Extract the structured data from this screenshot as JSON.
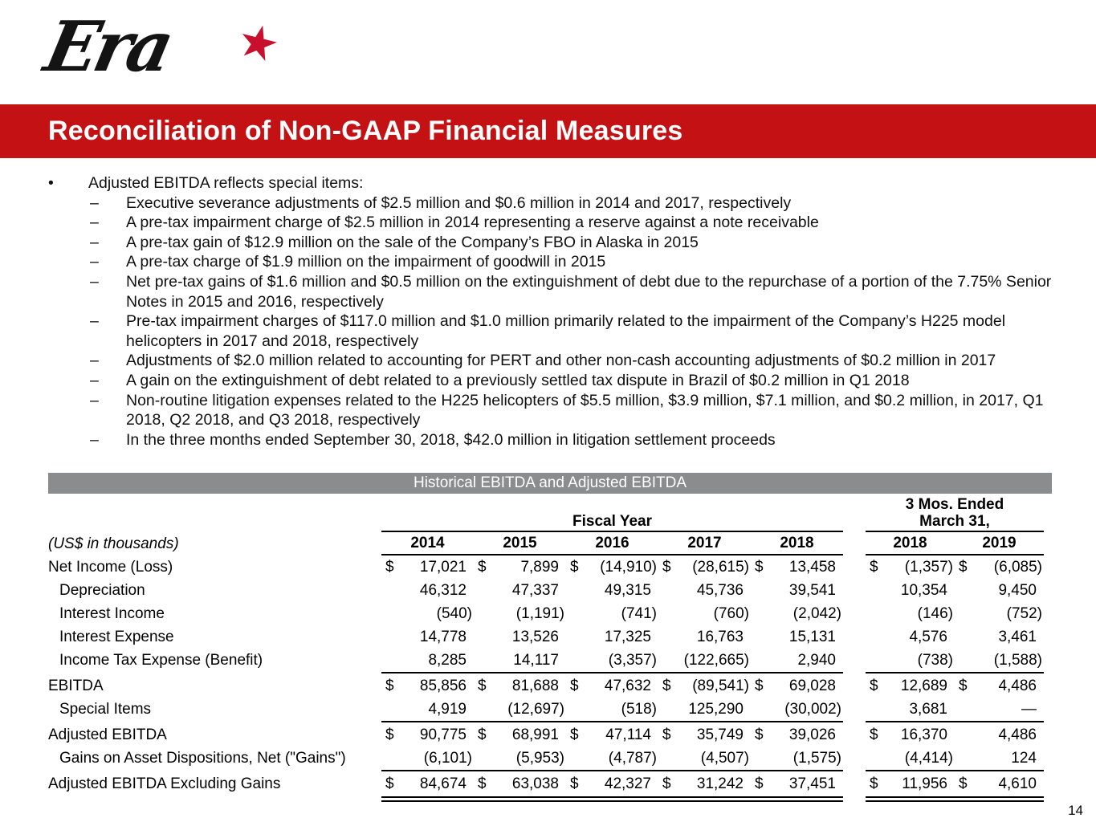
{
  "slide": {
    "logo_text": "Era",
    "logo_star": "★",
    "title": "Reconciliation of Non-GAAP Financial Measures",
    "page_number": "14"
  },
  "colors": {
    "band_red": "#C31114",
    "star_red": "#C8102E",
    "band_gray": "#8A8C8E"
  },
  "bullets": {
    "marker_lead": "•",
    "marker_sub": "–",
    "lead": "Adjusted EBITDA reflects special items:",
    "items": [
      "Executive severance adjustments of $2.5 million and $0.6 million in 2014 and 2017, respectively",
      "A pre-tax impairment charge of $2.5 million in 2014 representing a reserve against a note receivable",
      "A pre-tax gain of $12.9 million on the sale of the Company’s FBO in Alaska in 2015",
      "A pre-tax charge of $1.9 million on the impairment of goodwill in 2015",
      "Net pre-tax gains of $1.6 million and $0.5 million on the extinguishment of debt due to the repurchase of a portion of the 7.75% Senior Notes in 2015 and 2016, respectively",
      "Pre-tax impairment charges of $117.0 million and $1.0 million primarily related to the impairment of the Company’s H225 model helicopters in 2017 and 2018, respectively",
      "Adjustments of $2.0 million related to accounting for PERT and other non-cash accounting adjustments of $0.2 million in 2017",
      "A gain on the extinguishment of debt related to a previously settled tax dispute in Brazil of $0.2 million in Q1 2018",
      "Non-routine litigation expenses related to the H225 helicopters of $5.5 million, $3.9 million, $7.1 million, and $0.2 million, in 2017, Q1 2018, Q2 2018, and Q3 2018, respectively",
      "In the three months ended September 30, 2018, $42.0 million in litigation settlement proceeds"
    ]
  },
  "table": {
    "band_title": "Historical EBITDA and Adjusted EBITDA",
    "units_label": "(US$ in thousands)",
    "currency": "$",
    "group_headers": {
      "fiscal_year": "Fiscal Year",
      "three_months_line1": "3 Mos. Ended",
      "three_months_line2": "March 31,"
    },
    "years_fiscal": [
      "2014",
      "2015",
      "2016",
      "2017",
      "2018"
    ],
    "years_three_months": [
      "2018",
      "2019"
    ],
    "rows": [
      {
        "label": "Net Income (Loss)",
        "indent": false,
        "dollars": [
          1,
          1,
          1,
          1,
          1,
          1,
          1
        ],
        "values": [
          "17,021",
          "7,899",
          "(14,910)",
          "(28,615)",
          "13,458",
          "(1,357)",
          "(6,085)"
        ],
        "rule_below": "none"
      },
      {
        "label": "Depreciation",
        "indent": true,
        "dollars": [
          0,
          0,
          0,
          0,
          0,
          0,
          0
        ],
        "values": [
          "46,312",
          "47,337",
          "49,315",
          "45,736",
          "39,541",
          "10,354",
          "9,450"
        ],
        "rule_below": "none"
      },
      {
        "label": "Interest Income",
        "indent": true,
        "dollars": [
          0,
          0,
          0,
          0,
          0,
          0,
          0
        ],
        "values": [
          "(540)",
          "(1,191)",
          "(741)",
          "(760)",
          "(2,042)",
          "(146)",
          "(752)"
        ],
        "rule_below": "none"
      },
      {
        "label": "Interest Expense",
        "indent": true,
        "dollars": [
          0,
          0,
          0,
          0,
          0,
          0,
          0
        ],
        "values": [
          "14,778",
          "13,526",
          "17,325",
          "16,763",
          "15,131",
          "4,576",
          "3,461"
        ],
        "rule_below": "none"
      },
      {
        "label": "Income Tax Expense (Benefit)",
        "indent": true,
        "dollars": [
          0,
          0,
          0,
          0,
          0,
          0,
          0
        ],
        "values": [
          "8,285",
          "14,117",
          "(3,357)",
          "(122,665)",
          "2,940",
          "(738)",
          "(1,588)"
        ],
        "rule_below": "single"
      },
      {
        "label": "EBITDA",
        "indent": false,
        "dollars": [
          1,
          1,
          1,
          1,
          1,
          1,
          1
        ],
        "values": [
          "85,856",
          "81,688",
          "47,632",
          "(89,541)",
          "69,028",
          "12,689",
          "4,486"
        ],
        "rule_below": "none"
      },
      {
        "label": "Special Items",
        "indent": true,
        "dollars": [
          0,
          0,
          0,
          0,
          0,
          0,
          0
        ],
        "values": [
          "4,919",
          "(12,697)",
          "(518)",
          "125,290",
          "(30,002)",
          "3,681",
          "—"
        ],
        "rule_below": "single"
      },
      {
        "label": "Adjusted EBITDA",
        "indent": false,
        "dollars": [
          1,
          1,
          1,
          1,
          1,
          1,
          0
        ],
        "values": [
          "90,775",
          "68,991",
          "47,114",
          "35,749",
          "39,026",
          "16,370",
          "4,486"
        ],
        "rule_below": "none"
      },
      {
        "label": "Gains on Asset Dispositions, Net (\"Gains\")",
        "indent": true,
        "dollars": [
          0,
          0,
          0,
          0,
          0,
          0,
          0
        ],
        "values": [
          "(6,101)",
          "(5,953)",
          "(4,787)",
          "(4,507)",
          "(1,575)",
          "(4,414)",
          "124"
        ],
        "rule_below": "single"
      },
      {
        "label": "Adjusted EBITDA Excluding Gains",
        "indent": false,
        "dollars": [
          1,
          1,
          1,
          1,
          1,
          1,
          1
        ],
        "values": [
          "84,674",
          "63,038",
          "42,327",
          "31,242",
          "37,451",
          "11,956",
          "4,610"
        ],
        "rule_below": "double"
      }
    ]
  }
}
